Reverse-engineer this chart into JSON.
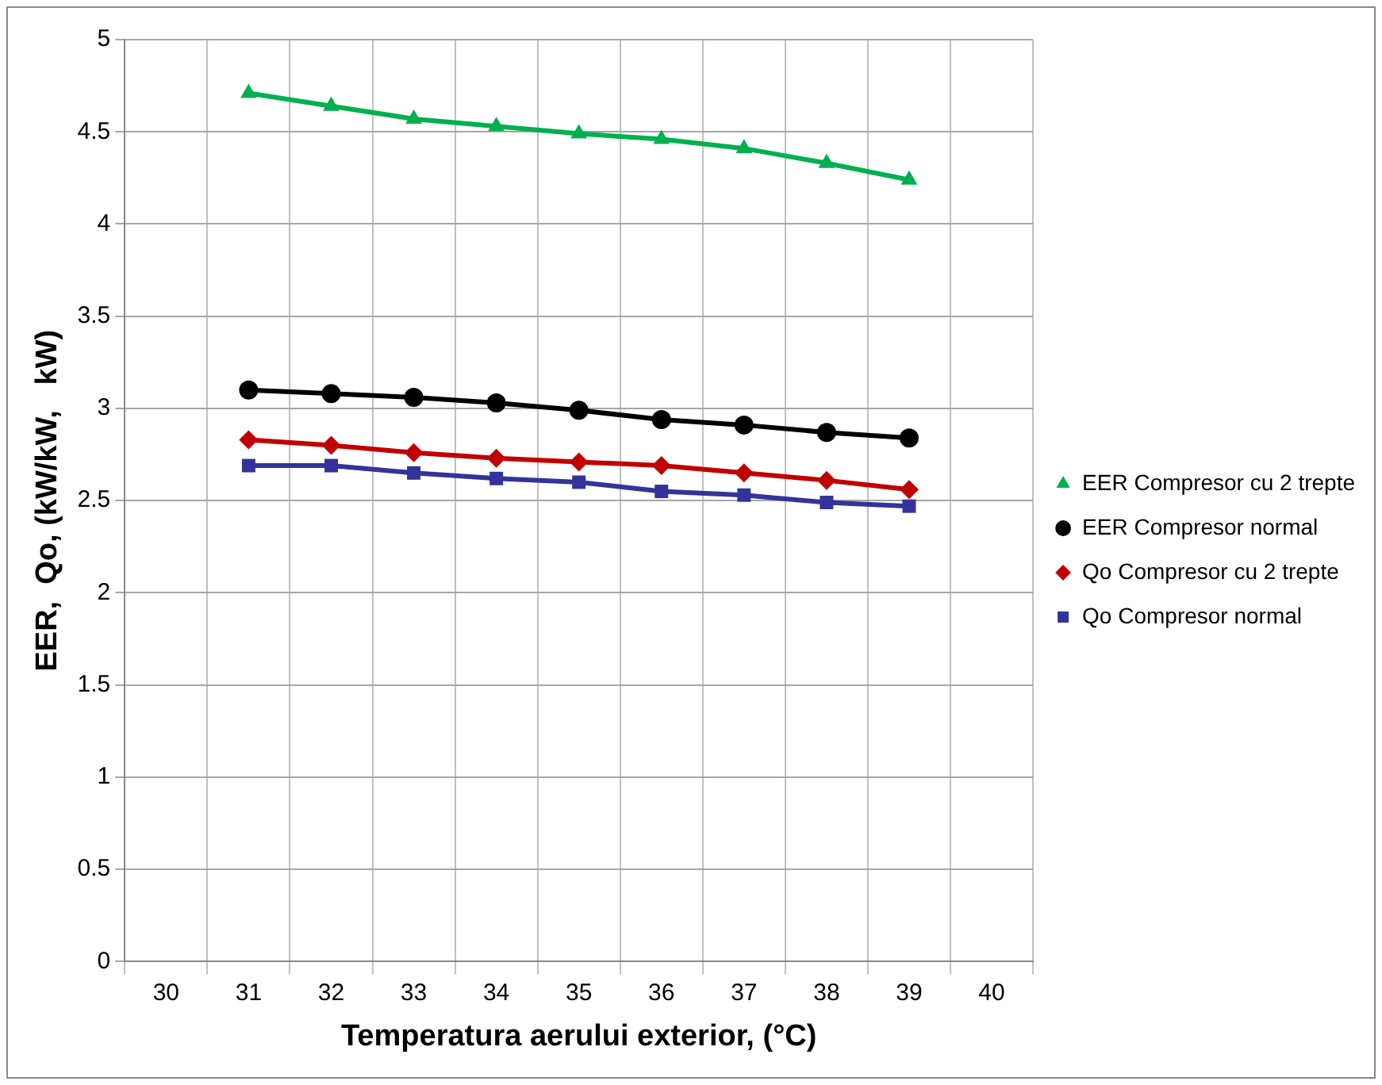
{
  "chart_data": {
    "type": "line",
    "xlabel": "Temperatura aerului exterior, (°C)",
    "ylabel": "EER,  Qo, (kW/kW,   kW)",
    "categories": [
      "30",
      "31",
      "32",
      "33",
      "34",
      "35",
      "36",
      "37",
      "38",
      "39",
      "40"
    ],
    "series": [
      {
        "name": "EER Compresor cu 2 trepte",
        "color": "#00b050",
        "marker": "triangle",
        "values": [
          null,
          4.71,
          4.64,
          4.57,
          4.53,
          4.49,
          4.46,
          4.41,
          4.33,
          4.24,
          null
        ]
      },
      {
        "name": "EER Compresor normal",
        "color": "#000000",
        "marker": "circle",
        "values": [
          null,
          3.1,
          3.08,
          3.06,
          3.03,
          2.99,
          2.94,
          2.91,
          2.87,
          2.84,
          null
        ]
      },
      {
        "name": "Qo Compresor cu 2 trepte",
        "color": "#c00000",
        "marker": "diamond",
        "values": [
          null,
          2.83,
          2.8,
          2.76,
          2.73,
          2.71,
          2.69,
          2.65,
          2.61,
          2.56,
          null
        ]
      },
      {
        "name": "Qo Compresor normal",
        "color": "#333399",
        "marker": "square",
        "values": [
          null,
          2.69,
          2.69,
          2.65,
          2.62,
          2.6,
          2.55,
          2.53,
          2.49,
          2.47,
          null
        ]
      }
    ],
    "ylim": [
      0,
      5
    ],
    "yticks": [
      0,
      0.5,
      1,
      1.5,
      2,
      2.5,
      3,
      3.5,
      4,
      4.5,
      5
    ],
    "grid": true,
    "legend": "right"
  }
}
